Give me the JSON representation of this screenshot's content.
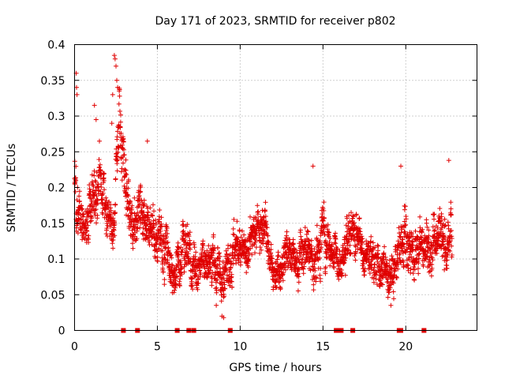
{
  "chart_data": {
    "type": "scatter",
    "title": "Day 171 of 2023, SRMTID for receiver p802",
    "xlabel": "GPS time / hours",
    "ylabel": "SRMTID / TECUs",
    "xlim": [
      0,
      24.3
    ],
    "ylim": [
      0,
      0.4
    ],
    "x_ticks": [
      0,
      5,
      10,
      15,
      20
    ],
    "x_tick_labels": [
      "0",
      "5",
      "10",
      "15",
      "20"
    ],
    "y_ticks": [
      0,
      0.05,
      0.1,
      0.15,
      0.2,
      0.25,
      0.3,
      0.35,
      0.4
    ],
    "y_tick_labels": [
      "0",
      "0.05",
      "0.1",
      "0.15",
      "0.2",
      "0.25",
      "0.3",
      "0.35",
      "0.4"
    ],
    "grid": true,
    "marker": "plus",
    "color": "#e00000",
    "envelope": {
      "x": [
        0,
        0.2,
        0.6,
        1.0,
        1.5,
        2.0,
        2.4,
        2.7,
        3.0,
        3.5,
        4.0,
        4.5,
        5.0,
        5.5,
        6.0,
        6.5,
        7.0,
        7.5,
        8.0,
        8.5,
        9.0,
        9.5,
        10.0,
        10.5,
        11.0,
        11.5,
        12.0,
        12.5,
        13.0,
        13.5,
        14.0,
        14.5,
        15.0,
        15.5,
        16.0,
        16.5,
        17.0,
        17.5,
        18.0,
        18.5,
        19.0,
        19.5,
        20.0,
        20.5,
        21.0,
        21.5,
        22.0,
        22.5,
        22.8
      ],
      "center": [
        0.22,
        0.16,
        0.13,
        0.18,
        0.2,
        0.17,
        0.15,
        0.3,
        0.22,
        0.15,
        0.17,
        0.13,
        0.14,
        0.12,
        0.08,
        0.12,
        0.1,
        0.09,
        0.1,
        0.08,
        0.07,
        0.1,
        0.13,
        0.11,
        0.14,
        0.15,
        0.08,
        0.08,
        0.11,
        0.1,
        0.12,
        0.1,
        0.14,
        0.11,
        0.09,
        0.13,
        0.13,
        0.11,
        0.1,
        0.09,
        0.07,
        0.1,
        0.15,
        0.09,
        0.13,
        0.11,
        0.14,
        0.12,
        0.15
      ],
      "spread": [
        0.08,
        0.06,
        0.04,
        0.06,
        0.05,
        0.05,
        0.04,
        0.07,
        0.06,
        0.05,
        0.05,
        0.05,
        0.05,
        0.06,
        0.04,
        0.05,
        0.05,
        0.04,
        0.04,
        0.05,
        0.04,
        0.05,
        0.04,
        0.04,
        0.04,
        0.04,
        0.03,
        0.04,
        0.04,
        0.04,
        0.05,
        0.04,
        0.06,
        0.04,
        0.04,
        0.05,
        0.04,
        0.04,
        0.04,
        0.04,
        0.04,
        0.05,
        0.06,
        0.05,
        0.05,
        0.05,
        0.06,
        0.05,
        0.07
      ],
      "step_hours": 0.0083,
      "seed": 171
    },
    "spikes": [
      {
        "x": 0.1,
        "y": 0.36
      },
      {
        "x": 0.12,
        "y": 0.34
      },
      {
        "x": 0.15,
        "y": 0.33
      },
      {
        "x": 1.2,
        "y": 0.315
      },
      {
        "x": 1.3,
        "y": 0.295
      },
      {
        "x": 1.5,
        "y": 0.265
      },
      {
        "x": 2.25,
        "y": 0.29
      },
      {
        "x": 2.3,
        "y": 0.33
      },
      {
        "x": 2.4,
        "y": 0.385
      },
      {
        "x": 2.45,
        "y": 0.38
      },
      {
        "x": 2.5,
        "y": 0.37
      },
      {
        "x": 2.55,
        "y": 0.35
      },
      {
        "x": 2.6,
        "y": 0.34
      },
      {
        "x": 4.4,
        "y": 0.265
      },
      {
        "x": 14.4,
        "y": 0.23
      },
      {
        "x": 19.7,
        "y": 0.23
      },
      {
        "x": 22.6,
        "y": 0.238
      },
      {
        "x": 9.0,
        "y": 0.018
      },
      {
        "x": 8.9,
        "y": 0.02
      },
      {
        "x": 19.1,
        "y": 0.035
      }
    ],
    "gap_markers_x": [
      2.95,
      3.8,
      6.2,
      6.9,
      7.2,
      9.4,
      15.8,
      16.0,
      16.1,
      16.8,
      19.6,
      19.7,
      21.1
    ]
  }
}
